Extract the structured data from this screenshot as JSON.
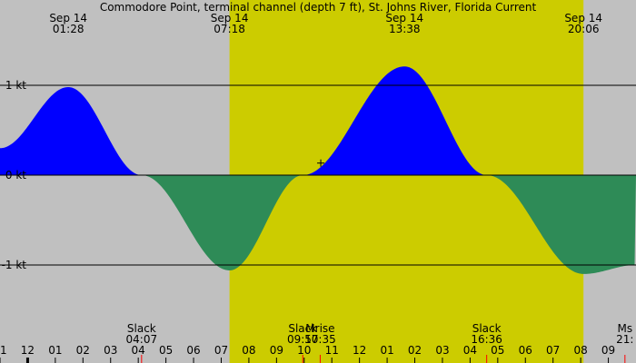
{
  "chart_data": {
    "type": "area",
    "title": "Commodore Point, terminal channel (depth 7 ft), St. Johns River, Florida Current",
    "y_unit": "kt",
    "ylim": [
      -2,
      2
    ],
    "y_ticks": [
      {
        "value": 1,
        "label": "1 kt"
      },
      {
        "value": 0,
        "label": "0 kt"
      },
      {
        "value": -1,
        "label": "-1 kt"
      }
    ],
    "x_range_hours": [
      -1.0,
      22.0
    ],
    "hour_ticks": [
      "11",
      "12",
      "01",
      "02",
      "03",
      "04",
      "05",
      "06",
      "07",
      "08",
      "09",
      "10",
      "11",
      "12",
      "01",
      "02",
      "03",
      "04",
      "05",
      "06",
      "07",
      "08",
      "09"
    ],
    "daylight": {
      "start_hour": 7.3,
      "end_hour": 20.1
    },
    "colors": {
      "night": "#c0c0c0",
      "day": "#cccc00",
      "flood": "#0000ff",
      "ebb": "#2e8b57",
      "rule": "#000000"
    },
    "extremes": [
      {
        "date": "Sep 14",
        "time": "01:28",
        "hour": 1.47,
        "value": 0.98
      },
      {
        "date": "Sep 14",
        "time": "07:18",
        "hour": 7.3,
        "value": -1.06
      },
      {
        "date": "Sep 14",
        "time": "13:38",
        "hour": 13.63,
        "value": 1.21
      },
      {
        "date": "Sep 14",
        "time": "20:06",
        "hour": 20.1,
        "value": -1.1
      }
    ],
    "events": [
      {
        "label": "Slack",
        "time": "04:07",
        "hour": 4.12
      },
      {
        "label": "Slack",
        "time": "09:57",
        "hour": 9.95
      },
      {
        "label": "Mrise",
        "time": "10:35",
        "hour": 10.58
      },
      {
        "label": "Slack",
        "time": "16:36",
        "hour": 16.6
      },
      {
        "label": "Ms",
        "time": "21:",
        "hour": 21.6
      }
    ],
    "curve_hours": [
      -1.0,
      1.47,
      4.12,
      7.3,
      9.95,
      13.63,
      16.6,
      20.1,
      22.0
    ],
    "curve_values": [
      0.3,
      0.98,
      0.0,
      -1.06,
      0.0,
      1.21,
      0.0,
      -1.1,
      -1.0
    ],
    "plus_marker": {
      "hour": 10.6,
      "value": 0.7
    }
  }
}
